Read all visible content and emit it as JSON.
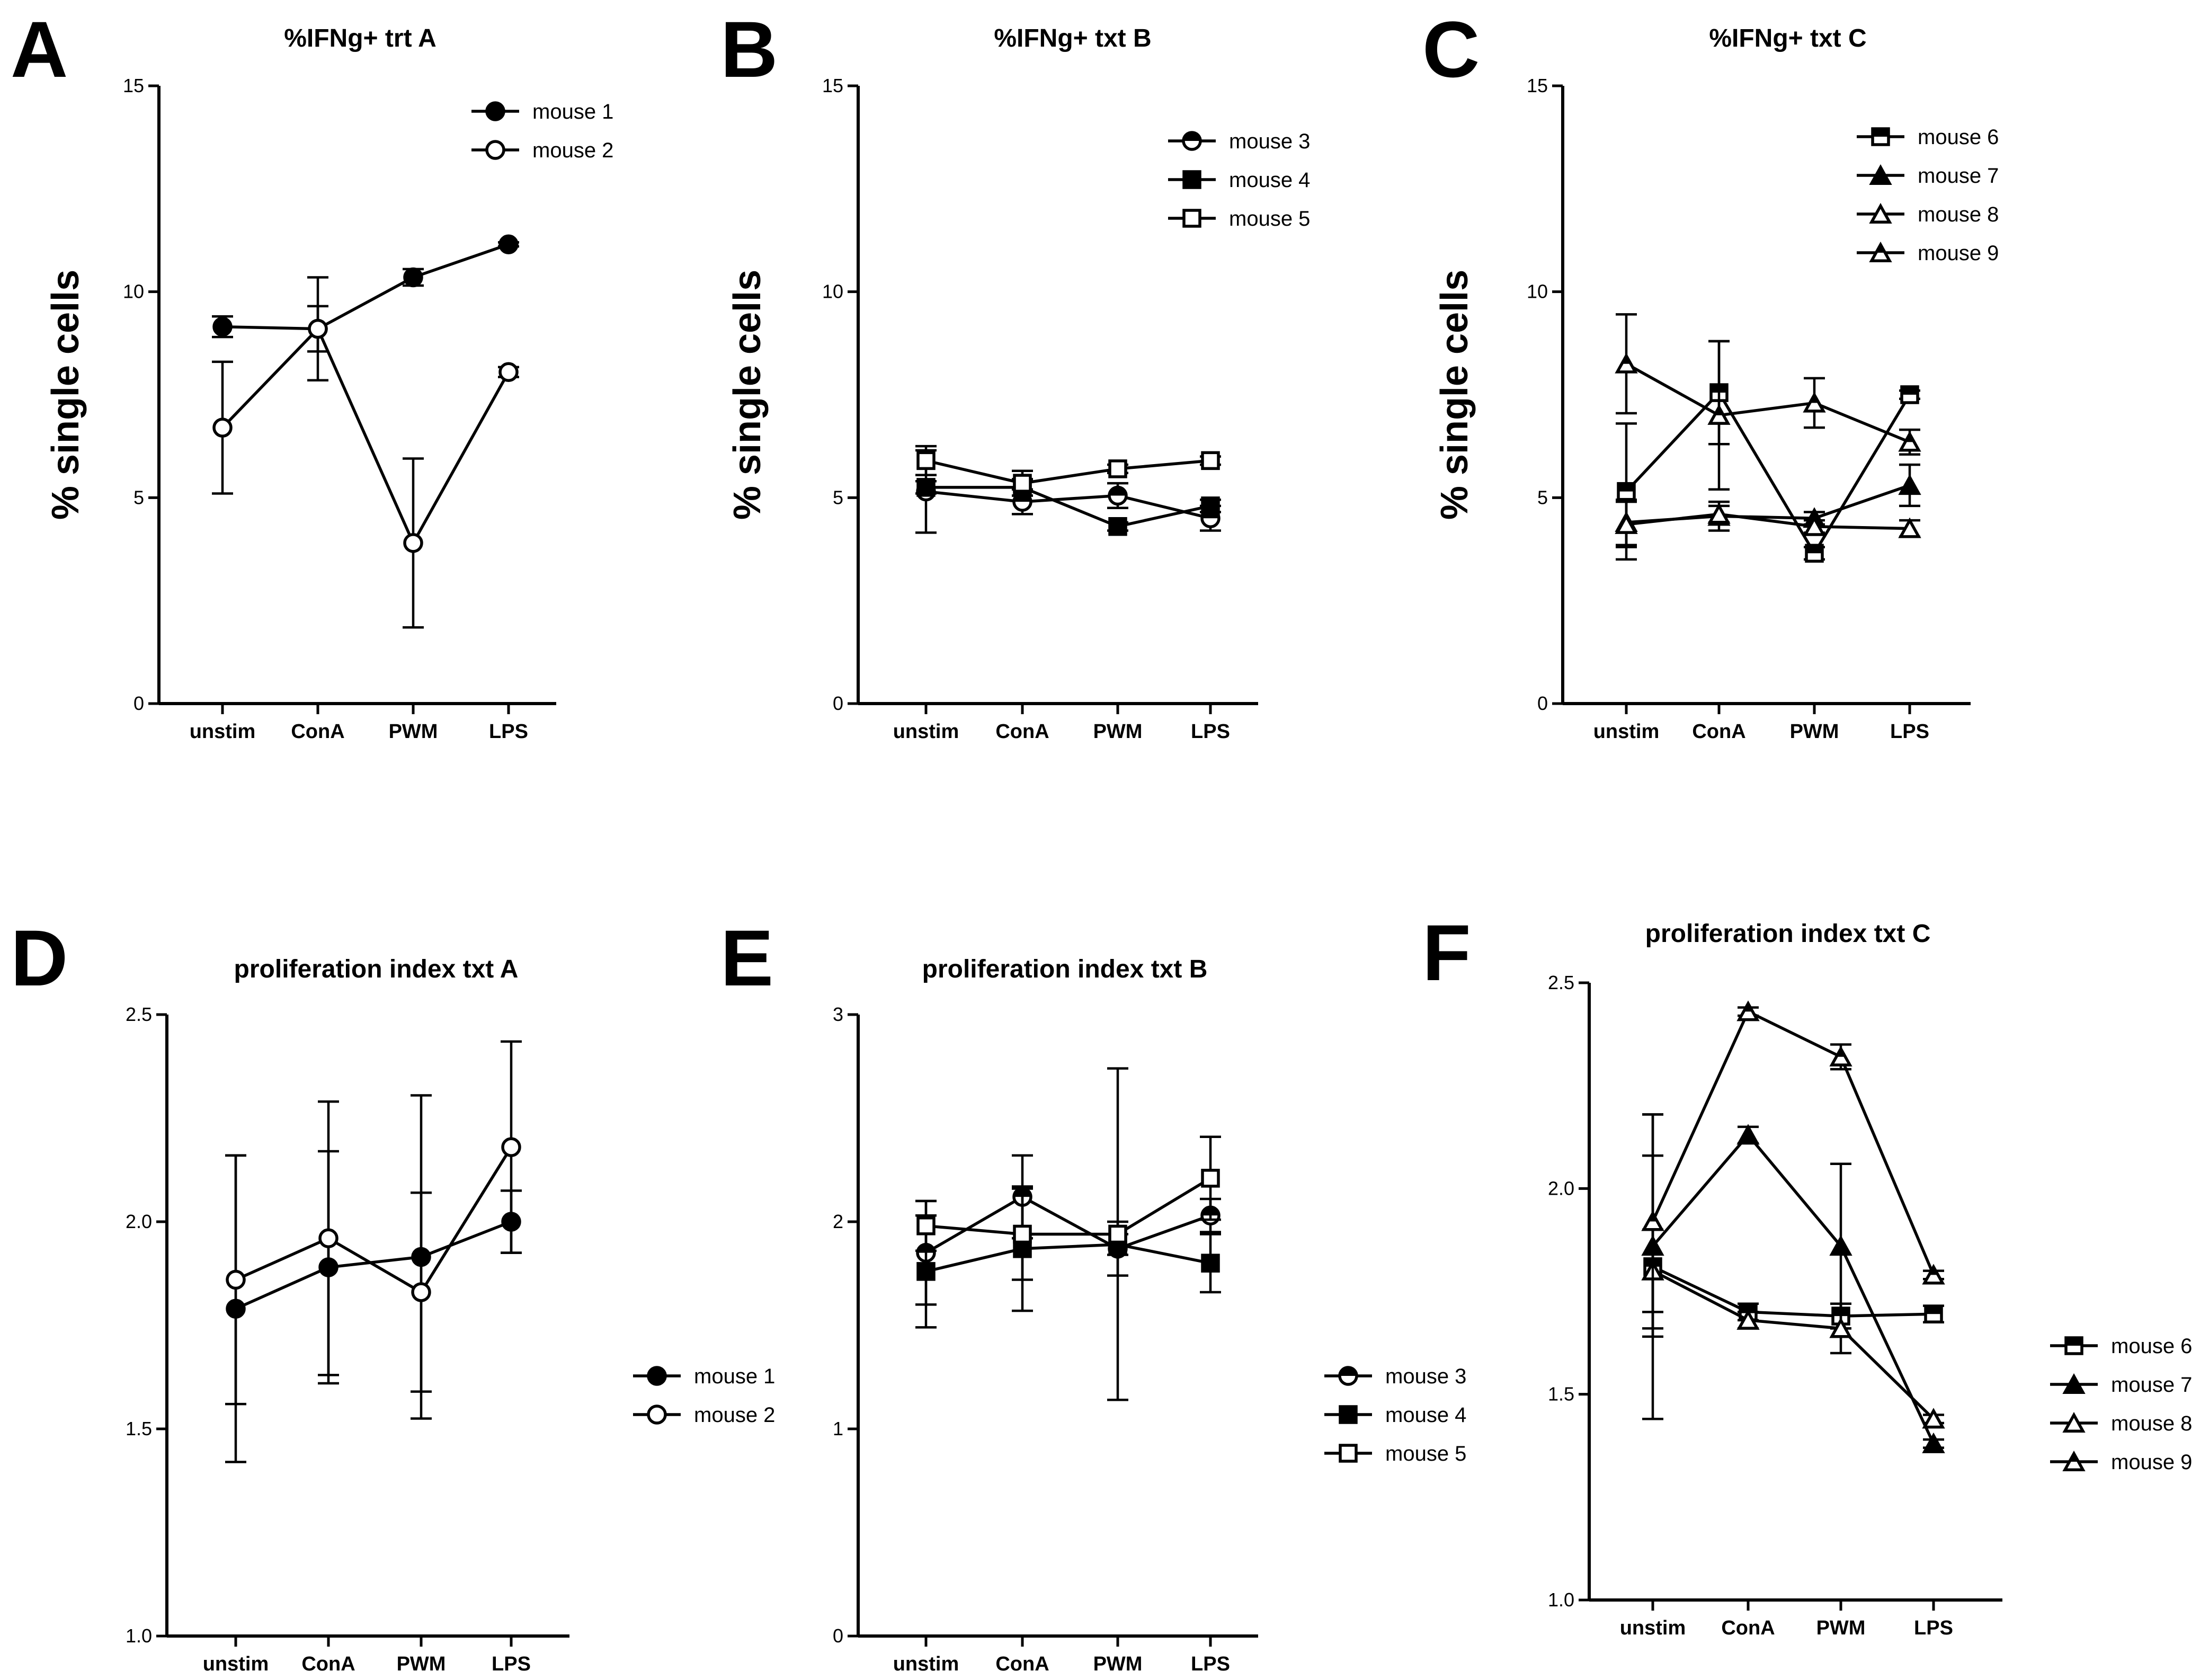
{
  "chart_data": [
    {
      "type": "line",
      "panel": "A",
      "title": "%IFNg+ trt A",
      "ylabel": "% single cells",
      "xlabel": "",
      "ylim": [
        0,
        15
      ],
      "yticks": [
        0,
        5,
        10,
        15
      ],
      "categories": [
        "unstim",
        "ConA",
        "PWM",
        "LPS"
      ],
      "legend_position": "top-right",
      "series": [
        {
          "name": "mouse 1",
          "marker": "circle-filled",
          "values": [
            9.15,
            9.1,
            10.35,
            11.15
          ],
          "errors": [
            0.25,
            0.55,
            0.2,
            0.05
          ]
        },
        {
          "name": "mouse 2",
          "marker": "circle-open",
          "values": [
            6.7,
            9.1,
            3.9,
            8.05
          ],
          "errors": [
            1.6,
            1.25,
            2.05,
            0.12
          ]
        }
      ]
    },
    {
      "type": "line",
      "panel": "B",
      "title": "%IFNg+ txt B",
      "ylabel": "% single cells",
      "xlabel": "",
      "ylim": [
        0,
        15
      ],
      "yticks": [
        0,
        5,
        10,
        15
      ],
      "categories": [
        "unstim",
        "ConA",
        "PWM",
        "LPS"
      ],
      "legend_position": "top-right",
      "series": [
        {
          "name": "mouse 3",
          "marker": "circle-half",
          "values": [
            5.15,
            4.9,
            5.05,
            4.5
          ],
          "errors": [
            1.0,
            0.3,
            0.3,
            0.3
          ]
        },
        {
          "name": "mouse 4",
          "marker": "square-filled",
          "values": [
            5.25,
            5.25,
            4.3,
            4.8
          ],
          "errors": [
            0.15,
            0.2,
            0.1,
            0.15
          ]
        },
        {
          "name": "mouse 5",
          "marker": "square-open",
          "values": [
            5.9,
            5.35,
            5.7,
            5.9
          ],
          "errors": [
            0.35,
            0.3,
            0.1,
            0.1
          ]
        }
      ]
    },
    {
      "type": "line",
      "panel": "C",
      "title": "%IFNg+ txt C",
      "ylabel": "% single cells",
      "xlabel": "",
      "ylim": [
        0,
        15
      ],
      "yticks": [
        0,
        5,
        10,
        15
      ],
      "categories": [
        "unstim",
        "ConA",
        "PWM",
        "LPS"
      ],
      "legend_position": "top-right",
      "series": [
        {
          "name": "mouse 6",
          "marker": "square-half",
          "values": [
            5.15,
            7.55,
            3.65,
            7.5
          ],
          "errors": [
            1.65,
            1.25,
            0.15,
            0.1
          ]
        },
        {
          "name": "mouse 7",
          "marker": "triangle-filled",
          "values": [
            4.4,
            4.55,
            4.5,
            5.3
          ],
          "errors": [
            0.55,
            0.35,
            0.15,
            0.5
          ]
        },
        {
          "name": "mouse 8",
          "marker": "triangle-open",
          "values": [
            4.35,
            4.6,
            4.3,
            4.25
          ],
          "errors": [
            0.55,
            0.2,
            0.15,
            0.2
          ]
        },
        {
          "name": "mouse 9",
          "marker": "triangle-half",
          "values": [
            8.25,
            7.0,
            7.3,
            6.35
          ],
          "errors": [
            1.2,
            1.8,
            0.6,
            0.3
          ]
        }
      ]
    },
    {
      "type": "line",
      "panel": "D",
      "title": "proliferation index txt A",
      "ylabel": "",
      "xlabel": "",
      "ylim": [
        1.0,
        2.5
      ],
      "yticks": [
        "1.0",
        "1.5",
        "2.0",
        "2.5"
      ],
      "categories": [
        "unstim",
        "ConA",
        "PWM",
        "LPS"
      ],
      "legend_position": "right",
      "series": [
        {
          "name": "mouse 1",
          "marker": "circle-filled",
          "values": [
            1.79,
            1.89,
            1.915,
            2.0
          ],
          "errors": [
            0.37,
            0.28,
            0.39,
            0.075
          ]
        },
        {
          "name": "mouse 2",
          "marker": "circle-open",
          "values": [
            1.86,
            1.96,
            1.83,
            2.18
          ],
          "errors": [
            0.3,
            0.33,
            0.24,
            0.255
          ]
        }
      ]
    },
    {
      "type": "line",
      "panel": "E",
      "title": "proliferation index txt B",
      "ylabel": "",
      "xlabel": "",
      "ylim": [
        0,
        3
      ],
      "yticks": [
        0,
        1,
        2,
        3
      ],
      "categories": [
        "unstim",
        "ConA",
        "PWM",
        "LPS"
      ],
      "legend_position": "right",
      "series": [
        {
          "name": "mouse 3",
          "marker": "circle-half",
          "values": [
            1.85,
            2.12,
            1.87,
            2.03
          ],
          "errors": [
            0.25,
            0.2,
            0.13,
            0.08
          ]
        },
        {
          "name": "mouse 4",
          "marker": "square-filled",
          "values": [
            1.76,
            1.87,
            1.89,
            1.8
          ],
          "errors": [
            0.27,
            0.3,
            0.05,
            0.14
          ]
        },
        {
          "name": "mouse 5",
          "marker": "square-open",
          "values": [
            1.98,
            1.94,
            1.94,
            2.21
          ],
          "errors": [
            0.12,
            0.22,
            0.8,
            0.2
          ]
        }
      ]
    },
    {
      "type": "line",
      "panel": "F",
      "title": "proliferation index txt C",
      "ylabel": "",
      "xlabel": "",
      "ylim": [
        1.0,
        2.5
      ],
      "yticks": [
        "1.0",
        "1.5",
        "2.0",
        "2.5"
      ],
      "categories": [
        "unstim",
        "ConA",
        "PWM",
        "LPS"
      ],
      "legend_position": "right",
      "series": [
        {
          "name": "mouse 6",
          "marker": "square-half",
          "values": [
            1.81,
            1.7,
            1.69,
            1.695
          ],
          "errors": [
            0.37,
            0.02,
            0.03,
            0.02
          ]
        },
        {
          "name": "mouse 7",
          "marker": "triangle-filled",
          "values": [
            1.86,
            2.13,
            1.86,
            1.38
          ],
          "errors": [
            0.22,
            0.02,
            0.2,
            0.01
          ]
        },
        {
          "name": "mouse 8",
          "marker": "triangle-open",
          "values": [
            1.8,
            1.68,
            1.66,
            1.44
          ],
          "errors": [
            0.1,
            0.02,
            0.06,
            0.01
          ]
        },
        {
          "name": "mouse 9",
          "marker": "triangle-half",
          "values": [
            1.92,
            2.43,
            2.32,
            1.79
          ],
          "errors": [
            0.26,
            0.01,
            0.03,
            0.01
          ]
        }
      ]
    }
  ]
}
